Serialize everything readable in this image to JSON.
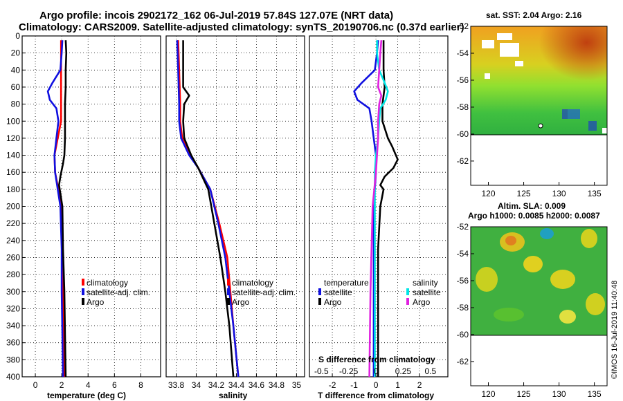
{
  "title_line1": "Argo profile: incois 2902172_162 06-Jul-2019 57.84S 127.07E (NRT data)",
  "title_line2": "Climatology: CARS2009. Satellite-adjusted climatology: synTS_20190706.nc (0.37d earlier)",
  "watermark": "©IMOS 16-Jul-2019 11:40:48",
  "colors": {
    "red": "#ff0000",
    "blue": "#1010e0",
    "black": "#000000",
    "cyan": "#00e6e6",
    "magenta": "#e020e0"
  },
  "chart_data": [
    {
      "type": "line",
      "id": "temperature",
      "xlabel": "temperature (deg C)",
      "xlim": [
        -1,
        9.5
      ],
      "ylim": [
        400,
        0
      ],
      "xticks": [
        0,
        2,
        4,
        6,
        8
      ],
      "xtick_labels": [
        "0",
        "2",
        "4",
        "6",
        "8"
      ],
      "yticks": [
        0,
        20,
        40,
        60,
        80,
        100,
        120,
        140,
        160,
        180,
        200,
        220,
        240,
        260,
        280,
        300,
        320,
        340,
        360,
        380,
        400
      ],
      "ytick_labels": [
        "0",
        "20",
        "40",
        "60",
        "80",
        "100",
        "120",
        "140",
        "160",
        "180",
        "200",
        "220",
        "240",
        "260",
        "280",
        "300",
        "320",
        "340",
        "360",
        "380",
        "400"
      ],
      "grid": true,
      "legend": [
        "climatology",
        "satellite-adj. clim.",
        "Argo"
      ],
      "series": [
        {
          "name": "climatology",
          "color": "red",
          "depth": [
            5,
            60,
            100,
            120,
            140,
            160,
            200,
            250,
            300,
            350,
            400
          ],
          "values": [
            1.95,
            1.95,
            1.95,
            1.7,
            1.45,
            1.5,
            2.0,
            2.05,
            2.1,
            2.15,
            2.2
          ]
        },
        {
          "name": "satellite-adj. clim.",
          "color": "blue",
          "depth": [
            5,
            20,
            40,
            55,
            65,
            75,
            85,
            100,
            120,
            140,
            160,
            200,
            250,
            300,
            350,
            400
          ],
          "values": [
            2.05,
            2.0,
            1.9,
            1.3,
            0.95,
            1.1,
            1.6,
            1.75,
            1.6,
            1.45,
            1.5,
            1.9,
            2.0,
            2.0,
            2.05,
            2.1
          ]
        },
        {
          "name": "Argo",
          "color": "black",
          "depth": [
            5,
            20,
            40,
            60,
            80,
            100,
            120,
            140,
            150,
            165,
            175,
            180,
            200,
            250,
            300,
            350,
            400
          ],
          "values": [
            2.3,
            2.35,
            2.3,
            2.3,
            2.25,
            2.25,
            2.25,
            2.2,
            2.1,
            1.9,
            1.8,
            1.85,
            2.05,
            2.1,
            2.2,
            2.25,
            2.3
          ]
        }
      ]
    },
    {
      "type": "line",
      "id": "salinity",
      "xlabel": "salinity",
      "xlim": [
        33.7,
        35.08
      ],
      "ylim": [
        400,
        0
      ],
      "xticks": [
        33.8,
        34,
        34.2,
        34.4,
        34.6,
        34.8,
        35
      ],
      "xtick_labels": [
        "33.8",
        "34",
        "34.2",
        "34.4",
        "34.6",
        "34.8",
        "35"
      ],
      "grid": true,
      "legend": [
        "climatology",
        "satellite-adj. clim.",
        "Argo"
      ],
      "series": [
        {
          "name": "climatology",
          "color": "red",
          "depth": [
            5,
            40,
            80,
            100,
            120,
            140,
            155,
            180,
            220,
            260,
            300,
            340,
            400
          ],
          "values": [
            33.82,
            33.83,
            33.84,
            33.84,
            33.86,
            33.94,
            34.02,
            34.14,
            34.23,
            34.31,
            34.34,
            34.37,
            34.42
          ]
        },
        {
          "name": "satellite-adj. clim.",
          "color": "blue",
          "depth": [
            5,
            40,
            80,
            100,
            120,
            140,
            155,
            180,
            220,
            260,
            300,
            340,
            400
          ],
          "values": [
            33.81,
            33.82,
            33.83,
            33.83,
            33.85,
            33.93,
            34.02,
            34.14,
            34.22,
            34.29,
            34.33,
            34.37,
            34.42
          ]
        },
        {
          "name": "Argo",
          "color": "black",
          "depth": [
            5,
            40,
            60,
            70,
            80,
            100,
            120,
            140,
            155,
            180,
            220,
            260,
            300,
            340,
            400
          ],
          "values": [
            33.87,
            33.87,
            33.87,
            33.93,
            33.88,
            33.87,
            33.88,
            33.95,
            34.02,
            34.12,
            34.18,
            34.24,
            34.29,
            34.33,
            34.37
          ]
        }
      ]
    },
    {
      "type": "line",
      "id": "difference",
      "xlabel": "T difference from climatology",
      "xlabel_top": "S difference from climatology",
      "xlim": [
        -3.05,
        3.3
      ],
      "ylim": [
        400,
        0
      ],
      "xticks": [
        -2,
        -1,
        0,
        1,
        2
      ],
      "xtick_labels": [
        "-2",
        "-1",
        "0",
        "1",
        "2"
      ],
      "top_scale_values": [
        -0.5,
        -0.25,
        0,
        0.25,
        0.5
      ],
      "top_scale_labels": [
        "-0.5",
        "-0.25",
        "0",
        "0.25",
        "0.5"
      ],
      "grid": true,
      "legend_temperature": {
        "title": "temperature",
        "items": [
          "satellite",
          "Argo"
        ]
      },
      "legend_salinity": {
        "title": "salinity",
        "items": [
          "satellite",
          "Argo"
        ]
      },
      "series": [
        {
          "name": "T satellite",
          "color": "blue",
          "depth": [
            5,
            20,
            40,
            55,
            65,
            75,
            85,
            100,
            120,
            140,
            160,
            200,
            300,
            400
          ],
          "values": [
            0.1,
            0.05,
            -0.05,
            -0.65,
            -1.0,
            -0.85,
            -0.3,
            -0.2,
            -0.1,
            0.0,
            0.0,
            -0.1,
            -0.1,
            -0.1
          ]
        },
        {
          "name": "T Argo",
          "color": "black",
          "depth": [
            5,
            20,
            40,
            60,
            80,
            100,
            120,
            130,
            145,
            155,
            165,
            175,
            180,
            200,
            250,
            300,
            350,
            400
          ],
          "values": [
            0.35,
            0.35,
            0.35,
            0.4,
            0.3,
            0.3,
            0.55,
            0.75,
            1.0,
            0.8,
            0.4,
            0.2,
            0.35,
            0.2,
            0.1,
            0.1,
            0.1,
            0.1
          ]
        },
        {
          "name": "S satellite",
          "color": "cyan",
          "depth": [
            5,
            20,
            40,
            55,
            65,
            75,
            85,
            100,
            120,
            140,
            160,
            200,
            300,
            400
          ],
          "values": [
            0.01,
            0.01,
            0.03,
            0.08,
            0.11,
            0.09,
            0.04,
            0.03,
            0.02,
            0.0,
            -0.01,
            -0.01,
            -0.01,
            -0.01
          ]
        },
        {
          "name": "S Argo",
          "color": "magenta",
          "depth": [
            5,
            20,
            40,
            60,
            70,
            80,
            100,
            120,
            140,
            160,
            200,
            300,
            400
          ],
          "values": [
            0.05,
            0.04,
            0.03,
            0.02,
            0.05,
            0.03,
            0.02,
            0.02,
            0.01,
            0.0,
            -0.03,
            -0.05,
            -0.06
          ]
        }
      ]
    },
    {
      "type": "heatmap",
      "id": "sst_map",
      "title": "sat. SST: 2.04 Argo: 2.16",
      "xlim": [
        117.5,
        136.8
      ],
      "ylim": [
        -63.8,
        -52
      ],
      "xticks": [
        120,
        125,
        130,
        135
      ],
      "xtick_labels": [
        "120",
        "125",
        "130",
        "135"
      ],
      "yticks": [
        -52,
        -54,
        -56,
        -58,
        -60,
        -62
      ],
      "ytick_labels": [
        "-52",
        "-54",
        "-56",
        "-58",
        "-60",
        "-62"
      ],
      "data_lat_range": [
        -60,
        -52
      ]
    },
    {
      "type": "heatmap",
      "id": "sla_map",
      "title": "Altim. SLA: 0.009",
      "subtitle": "Argo h1000: 0.0085 h2000: 0.0087",
      "xlim": [
        117.5,
        136.8
      ],
      "ylim": [
        -63.8,
        -52
      ],
      "xticks": [
        120,
        125,
        130,
        135
      ],
      "xtick_labels": [
        "120",
        "125",
        "130",
        "135"
      ],
      "yticks": [
        -52,
        -54,
        -56,
        -58,
        -60,
        -62
      ],
      "ytick_labels": [
        "-52",
        "-54",
        "-56",
        "-58",
        "-60",
        "-62"
      ],
      "data_lat_range": [
        -60,
        -52
      ]
    }
  ]
}
